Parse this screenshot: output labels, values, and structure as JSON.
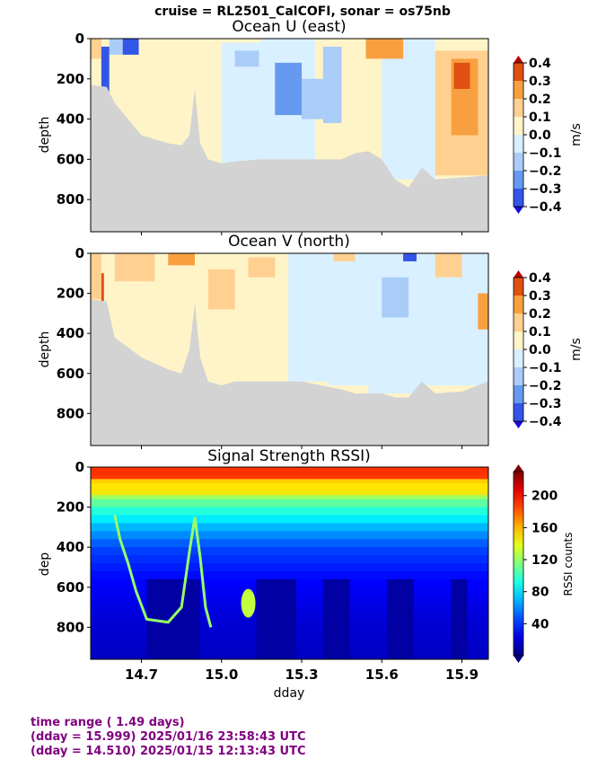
{
  "suptitle": "cruise = RL2501_CalCOFI,  sonar = os75nb",
  "footer": {
    "line1": "time range ( 1.49 days)",
    "line2": "(dday = 15.999) 2025/01/16 23:58:43 UTC",
    "line3": "(dday = 14.510) 2025/01/15 12:13:43 UTC"
  },
  "chart_data": [
    {
      "type": "heatmap",
      "title": "Ocean U (east)",
      "ylabel": "depth",
      "xlabel": "",
      "xlim": [
        14.51,
        15.999
      ],
      "ylim": [
        960,
        0
      ],
      "yticks": [
        0,
        200,
        400,
        600,
        800
      ],
      "xticks": [
        14.7,
        15.0,
        15.3,
        15.6,
        15.9
      ],
      "show_xticklabels": false,
      "colorbar": {
        "label": "m/s",
        "levels": [
          -0.4,
          -0.3,
          -0.2,
          -0.1,
          0.0,
          0.1,
          0.2,
          0.3,
          0.4
        ],
        "ticklabels": [
          "0.4",
          "0.3",
          "0.2",
          "0.1",
          "0.0",
          "−0.1",
          "−0.2",
          "−0.3",
          "−0.4"
        ],
        "colors": [
          "#1a0ad8",
          "#3355e8",
          "#6699f0",
          "#aaccf8",
          "#d8f0ff",
          "#fff4c8",
          "#ffd090",
          "#f8a040",
          "#e05010",
          "#b80000"
        ]
      },
      "bottom_depth": [
        [
          14.51,
          230
        ],
        [
          14.57,
          240
        ],
        [
          14.6,
          320
        ],
        [
          14.7,
          480
        ],
        [
          14.8,
          520
        ],
        [
          14.85,
          530
        ],
        [
          14.88,
          480
        ],
        [
          14.9,
          250
        ],
        [
          14.92,
          520
        ],
        [
          14.95,
          600
        ],
        [
          15.0,
          620
        ],
        [
          15.05,
          610
        ],
        [
          15.15,
          600
        ],
        [
          15.3,
          600
        ],
        [
          15.45,
          600
        ],
        [
          15.5,
          570
        ],
        [
          15.55,
          560
        ],
        [
          15.6,
          600
        ],
        [
          15.65,
          700
        ],
        [
          15.7,
          740
        ],
        [
          15.75,
          640
        ],
        [
          15.8,
          700
        ],
        [
          15.9,
          690
        ],
        [
          15.999,
          680
        ]
      ],
      "cells": [
        {
          "x0": 14.51,
          "x1": 14.55,
          "z0": 0,
          "z1": 100,
          "v": 0.1
        },
        {
          "x0": 14.55,
          "x1": 14.58,
          "z0": 40,
          "z1": 440,
          "v": -0.35
        },
        {
          "x0": 14.58,
          "x1": 14.63,
          "z0": 0,
          "z1": 80,
          "v": -0.15
        },
        {
          "x0": 14.63,
          "x1": 14.69,
          "z0": 0,
          "z1": 90,
          "v": -0.38
        },
        {
          "x0": 14.58,
          "x1": 14.9,
          "z0": 80,
          "z1": 600,
          "v": 0.05
        },
        {
          "x0": 14.9,
          "x1": 15.0,
          "z0": 0,
          "z1": 600,
          "v": 0.05
        },
        {
          "x0": 15.0,
          "x1": 15.15,
          "z0": 20,
          "z1": 620,
          "v": -0.05
        },
        {
          "x0": 15.05,
          "x1": 15.14,
          "z0": 60,
          "z1": 140,
          "v": -0.15
        },
        {
          "x0": 15.15,
          "x1": 15.35,
          "z0": 0,
          "z1": 600,
          "v": -0.05
        },
        {
          "x0": 15.2,
          "x1": 15.3,
          "z0": 120,
          "z1": 380,
          "v": -0.22
        },
        {
          "x0": 15.3,
          "x1": 15.38,
          "z0": 200,
          "z1": 400,
          "v": -0.15
        },
        {
          "x0": 15.38,
          "x1": 15.45,
          "z0": 40,
          "z1": 420,
          "v": -0.12
        },
        {
          "x0": 15.45,
          "x1": 15.55,
          "z0": 0,
          "z1": 600,
          "v": 0.05
        },
        {
          "x0": 15.55,
          "x1": 15.6,
          "z0": 0,
          "z1": 560,
          "v": 0.06
        },
        {
          "x0": 15.6,
          "x1": 15.7,
          "z0": 0,
          "z1": 700,
          "v": -0.05
        },
        {
          "x0": 15.7,
          "x1": 15.8,
          "z0": 0,
          "z1": 700,
          "v": -0.06
        },
        {
          "x0": 15.54,
          "x1": 15.68,
          "z0": 0,
          "z1": 100,
          "v": 0.2
        },
        {
          "x0": 15.8,
          "x1": 15.999,
          "z0": 60,
          "z1": 680,
          "v": 0.15
        },
        {
          "x0": 15.86,
          "x1": 15.96,
          "z0": 100,
          "z1": 480,
          "v": 0.22
        },
        {
          "x0": 15.87,
          "x1": 15.93,
          "z0": 120,
          "z1": 250,
          "v": 0.32
        }
      ]
    },
    {
      "type": "heatmap",
      "title": "Ocean V (north)",
      "ylabel": "depth",
      "xlabel": "",
      "xlim": [
        14.51,
        15.999
      ],
      "ylim": [
        960,
        0
      ],
      "yticks": [
        0,
        200,
        400,
        600,
        800
      ],
      "xticks": [
        14.7,
        15.0,
        15.3,
        15.6,
        15.9
      ],
      "show_xticklabels": false,
      "colorbar": {
        "label": "m/s",
        "levels": [
          -0.4,
          -0.3,
          -0.2,
          -0.1,
          0.0,
          0.1,
          0.2,
          0.3,
          0.4
        ],
        "ticklabels": [
          "0.4",
          "0.3",
          "0.2",
          "0.1",
          "0.0",
          "−0.1",
          "−0.2",
          "−0.3",
          "−0.4"
        ],
        "colors": [
          "#1a0ad8",
          "#3355e8",
          "#6699f0",
          "#aaccf8",
          "#d8f0ff",
          "#fff4c8",
          "#ffd090",
          "#f8a040",
          "#e05010",
          "#b80000"
        ]
      },
      "bottom_depth": [
        [
          14.51,
          230
        ],
        [
          14.57,
          240
        ],
        [
          14.6,
          420
        ],
        [
          14.7,
          520
        ],
        [
          14.8,
          580
        ],
        [
          14.85,
          600
        ],
        [
          14.88,
          480
        ],
        [
          14.9,
          250
        ],
        [
          14.92,
          520
        ],
        [
          14.95,
          640
        ],
        [
          15.0,
          660
        ],
        [
          15.05,
          640
        ],
        [
          15.15,
          640
        ],
        [
          15.3,
          640
        ],
        [
          15.45,
          680
        ],
        [
          15.5,
          700
        ],
        [
          15.6,
          700
        ],
        [
          15.65,
          720
        ],
        [
          15.7,
          720
        ],
        [
          15.75,
          640
        ],
        [
          15.8,
          700
        ],
        [
          15.9,
          690
        ],
        [
          15.999,
          640
        ]
      ],
      "cells": [
        {
          "x0": 14.51,
          "x1": 14.55,
          "z0": 0,
          "z1": 230,
          "v": 0.15
        },
        {
          "x0": 14.55,
          "x1": 14.56,
          "z0": 100,
          "z1": 300,
          "v": 0.35
        },
        {
          "x0": 14.56,
          "x1": 14.9,
          "z0": 0,
          "z1": 560,
          "v": 0.05
        },
        {
          "x0": 14.6,
          "x1": 14.75,
          "z0": 0,
          "z1": 140,
          "v": 0.18
        },
        {
          "x0": 14.8,
          "x1": 14.95,
          "z0": 0,
          "z1": 60,
          "v": 0.2
        },
        {
          "x0": 14.9,
          "x1": 15.1,
          "z0": 0,
          "z1": 600,
          "v": 0.04
        },
        {
          "x0": 14.95,
          "x1": 15.05,
          "z0": 80,
          "z1": 280,
          "v": 0.15
        },
        {
          "x0": 15.1,
          "x1": 15.25,
          "z0": 0,
          "z1": 640,
          "v": 0.05
        },
        {
          "x0": 15.1,
          "x1": 15.2,
          "z0": 20,
          "z1": 120,
          "v": 0.18
        },
        {
          "x0": 15.25,
          "x1": 15.4,
          "z0": 0,
          "z1": 640,
          "v": -0.05
        },
        {
          "x0": 15.4,
          "x1": 15.55,
          "z0": 0,
          "z1": 660,
          "v": -0.05
        },
        {
          "x0": 15.42,
          "x1": 15.5,
          "z0": 0,
          "z1": 40,
          "v": 0.15
        },
        {
          "x0": 15.55,
          "x1": 15.75,
          "z0": 0,
          "z1": 700,
          "v": -0.06
        },
        {
          "x0": 15.6,
          "x1": 15.7,
          "z0": 120,
          "z1": 320,
          "v": -0.12
        },
        {
          "x0": 15.68,
          "x1": 15.73,
          "z0": 0,
          "z1": 40,
          "v": -0.35
        },
        {
          "x0": 15.75,
          "x1": 15.999,
          "z0": 0,
          "z1": 660,
          "v": -0.05
        },
        {
          "x0": 15.8,
          "x1": 15.9,
          "z0": 0,
          "z1": 120,
          "v": 0.1
        },
        {
          "x0": 15.96,
          "x1": 15.999,
          "z0": 200,
          "z1": 380,
          "v": 0.25
        }
      ]
    },
    {
      "type": "heatmap",
      "title": "Signal Strength RSSI)",
      "ylabel": "dep",
      "xlabel": "dday",
      "xlim": [
        14.51,
        15.999
      ],
      "ylim": [
        960,
        0
      ],
      "yticks": [
        0,
        200,
        400,
        600,
        800
      ],
      "xticks": [
        14.7,
        15.0,
        15.3,
        15.6,
        15.9
      ],
      "show_xticklabels": true,
      "colorbar": {
        "label": "RSSI counts",
        "range": [
          0,
          230
        ],
        "ticks": [
          40,
          80,
          120,
          160,
          200
        ],
        "ticklabels": [
          "200",
          "160",
          "120",
          "80",
          "40"
        ]
      },
      "surface_band": [
        {
          "x0": 14.51,
          "x1": 15.999,
          "z0": 0,
          "z1": 60,
          "v": 190
        },
        {
          "x0": 14.51,
          "x1": 15.999,
          "z0": 60,
          "z1": 140,
          "v": 150
        }
      ],
      "depth_profile": [
        [
          0,
          200
        ],
        [
          60,
          180
        ],
        [
          120,
          130
        ],
        [
          200,
          100
        ],
        [
          300,
          70
        ],
        [
          400,
          45
        ],
        [
          550,
          30
        ],
        [
          750,
          20
        ],
        [
          960,
          15
        ]
      ],
      "dark_columns": [
        [
          14.72,
          14.92
        ],
        [
          15.13,
          15.28
        ],
        [
          15.38,
          15.48
        ],
        [
          15.62,
          15.72
        ],
        [
          15.86,
          15.92
        ]
      ],
      "wave_line": [
        [
          14.6,
          240
        ],
        [
          14.62,
          360
        ],
        [
          14.65,
          480
        ],
        [
          14.68,
          620
        ],
        [
          14.72,
          760
        ],
        [
          14.8,
          775
        ],
        [
          14.85,
          700
        ],
        [
          14.88,
          420
        ],
        [
          14.9,
          250
        ],
        [
          14.92,
          450
        ],
        [
          14.94,
          700
        ],
        [
          14.96,
          800
        ]
      ],
      "hot_spot": {
        "x": 15.1,
        "z": 680,
        "v": 130
      }
    }
  ]
}
